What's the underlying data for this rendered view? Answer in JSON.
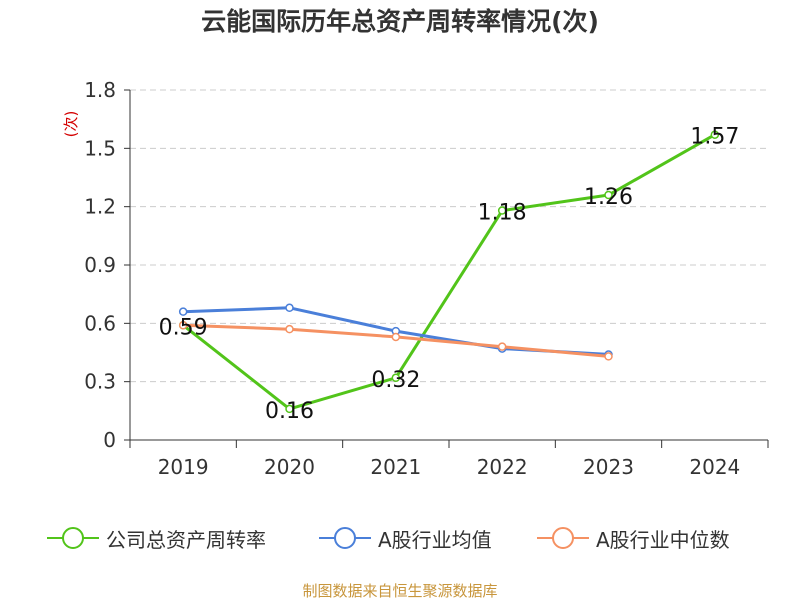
{
  "chart_data": {
    "type": "line",
    "title": "云能国际历年总资产周转率情况(次)",
    "ylabel": "(次)",
    "categories": [
      "2019",
      "2020",
      "2021",
      "2022",
      "2023",
      "2024"
    ],
    "ylim": [
      0,
      1.8
    ],
    "yticks": [
      "0",
      "0.3",
      "0.6",
      "0.9",
      "1.2",
      "1.5",
      "1.8"
    ],
    "grid": true,
    "legend_position": "bottom",
    "series": [
      {
        "name": "公司总资产周转率",
        "color": "#52c41a",
        "values": [
          0.59,
          0.16,
          0.32,
          1.18,
          1.26,
          1.57
        ],
        "labels": [
          "0.59",
          "0.16",
          "0.32",
          "1.18",
          "1.26",
          "1.57"
        ]
      },
      {
        "name": "A股行业均值",
        "color": "#4a7fd9",
        "values": [
          0.66,
          0.68,
          0.56,
          0.47,
          0.44,
          null
        ]
      },
      {
        "name": "A股行业中位数",
        "color": "#f59162",
        "values": [
          0.59,
          0.57,
          0.53,
          0.48,
          0.43,
          null
        ]
      }
    ]
  },
  "source": "制图数据来自恒生聚源数据库",
  "colors": {
    "axis": "#333333",
    "grid": "#cccccc",
    "ylabel": "#d40000",
    "source": "#c8963c"
  }
}
